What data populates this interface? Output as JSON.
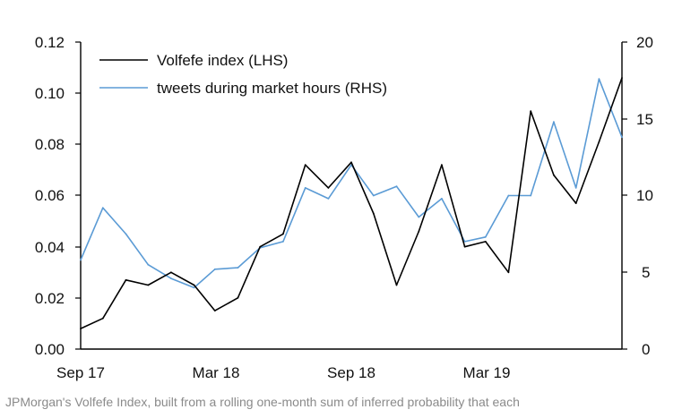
{
  "chart_data": {
    "type": "line",
    "title": "",
    "xlabel": "",
    "ylabel": "",
    "x_tick_labels": [
      "Sep 17",
      "Mar 18",
      "Sep 18",
      "Mar 19"
    ],
    "y_left": {
      "range": [
        0.0,
        0.12
      ],
      "ticks": [
        "0.00",
        "0.02",
        "0.04",
        "0.06",
        "0.08",
        "0.10",
        "0.12"
      ]
    },
    "y_right": {
      "range": [
        0,
        20
      ],
      "ticks": [
        "0",
        "5",
        "10",
        "15",
        "20"
      ]
    },
    "grid": false,
    "legend_position": "top-left",
    "x": [
      "2017-09-01",
      "2017-10-01",
      "2017-11-01",
      "2017-12-01",
      "2018-01-01",
      "2018-02-01",
      "2018-03-01",
      "2018-04-01",
      "2018-05-01",
      "2018-06-01",
      "2018-07-01",
      "2018-08-01",
      "2018-09-01",
      "2018-10-01",
      "2018-11-01",
      "2018-12-01",
      "2019-01-01",
      "2019-02-01",
      "2019-03-01",
      "2019-04-01",
      "2019-05-01",
      "2019-06-01",
      "2019-07-01",
      "2019-08-01",
      "2019-09-01"
    ],
    "series": [
      {
        "name": "Volfefe index (LHS)",
        "axis": "left",
        "color": "#000000",
        "values": [
          0.008,
          0.012,
          0.027,
          0.025,
          0.03,
          0.025,
          0.015,
          0.02,
          0.04,
          0.045,
          0.072,
          0.063,
          0.073,
          0.053,
          0.025,
          0.046,
          0.072,
          0.04,
          0.042,
          0.03,
          0.093,
          0.068,
          0.057,
          0.081,
          0.106
        ]
      },
      {
        "name": "tweets during market hours (RHS)",
        "axis": "right",
        "color": "#5b9bd5",
        "values": [
          5.8,
          9.2,
          7.5,
          5.5,
          4.6,
          4.0,
          5.2,
          5.3,
          6.6,
          7.0,
          10.5,
          9.8,
          12.0,
          10.0,
          10.6,
          8.6,
          9.8,
          7.0,
          7.3,
          10.0,
          10.0,
          14.8,
          10.5,
          17.6,
          13.8
        ]
      }
    ]
  },
  "caption": "JPMorgan's Volfefe Index, built from a rolling one-month sum of inferred probability that each"
}
